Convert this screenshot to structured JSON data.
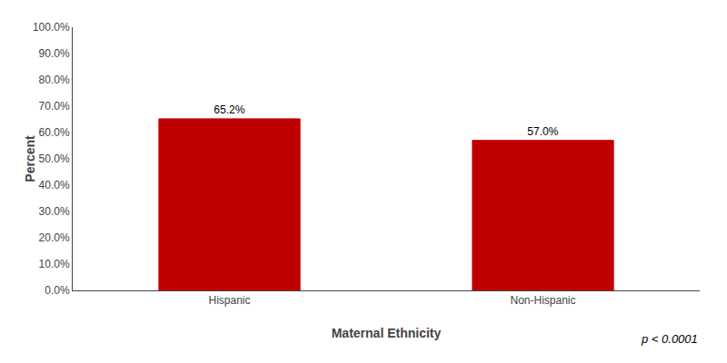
{
  "chart_data": {
    "type": "bar",
    "categories": [
      "Hispanic",
      "Non-Hispanic"
    ],
    "values": [
      65.2,
      57.0
    ],
    "value_labels": [
      "65.2%",
      "57.0%"
    ],
    "data_labels": true,
    "color": "#C00000",
    "xlabel": "Maternal Ethnicity",
    "ylabel": "Percent",
    "ylim": [
      0,
      100
    ],
    "yticks": [
      {
        "value": 0,
        "label": "0.0%"
      },
      {
        "value": 10,
        "label": "10.0%"
      },
      {
        "value": 20,
        "label": "20.0%"
      },
      {
        "value": 30,
        "label": "30.0%"
      },
      {
        "value": 40,
        "label": "40.0%"
      },
      {
        "value": 50,
        "label": "50.0%"
      },
      {
        "value": 60,
        "label": "60.0%"
      },
      {
        "value": 70,
        "label": "70.0%"
      },
      {
        "value": 80,
        "label": "80.0%"
      },
      {
        "value": 90,
        "label": "90.0%"
      },
      {
        "value": 100,
        "label": "100.0%"
      }
    ],
    "annotations": [
      "p < 0.0001"
    ],
    "grid": false
  }
}
